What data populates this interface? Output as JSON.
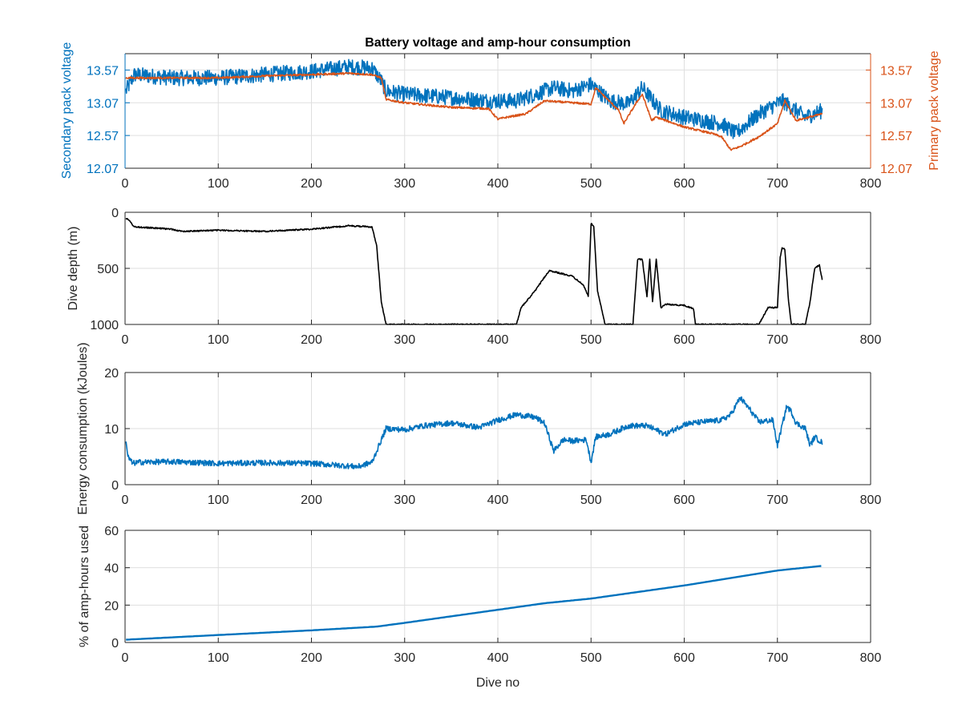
{
  "colors": {
    "blue": "#0072bd",
    "orange": "#d95319",
    "black": "#000000",
    "axis": "#262626",
    "grid": "#dfdfdf"
  },
  "chart_data": [
    {
      "type": "line",
      "title": "Battery voltage and amp-hour consumption",
      "xlabel": "",
      "ylabel": "Secondary pack voltage",
      "ylabel_right": "Primary pack voltage",
      "xlim": [
        0,
        800
      ],
      "ylim": [
        12.07,
        13.82
      ],
      "ylim_right": [
        12.07,
        13.82
      ],
      "xticks": [
        "0",
        "100",
        "200",
        "300",
        "400",
        "500",
        "600",
        "700",
        "800"
      ],
      "yticks": [
        "12.07",
        "12.57",
        "13.07",
        "13.57"
      ],
      "yticks_right": [
        "12.07",
        "12.57",
        "13.07",
        "13.57"
      ],
      "grid": true,
      "series": [
        {
          "axis": "left",
          "color": "#0072bd",
          "noise": 0.12,
          "x": [
            1,
            10,
            50,
            100,
            150,
            200,
            240,
            265,
            275,
            280,
            300,
            350,
            390,
            420,
            460,
            480,
            500,
            520,
            540,
            555,
            575,
            600,
            640,
            655,
            680,
            705,
            730,
            748
          ],
          "y": [
            13.25,
            13.5,
            13.45,
            13.45,
            13.5,
            13.55,
            13.62,
            13.6,
            13.4,
            13.25,
            13.2,
            13.15,
            13.1,
            13.1,
            13.3,
            13.25,
            13.35,
            13.1,
            13.05,
            13.3,
            12.95,
            12.85,
            12.75,
            12.6,
            12.9,
            13.1,
            12.85,
            12.95
          ]
        },
        {
          "axis": "right",
          "color": "#d95319",
          "noise": 0.015,
          "x": [
            1,
            10,
            50,
            100,
            150,
            200,
            240,
            265,
            275,
            280,
            300,
            350,
            390,
            400,
            410,
            430,
            450,
            500,
            505,
            530,
            535,
            550,
            555,
            565,
            570,
            600,
            630,
            640,
            650,
            660,
            680,
            700,
            708,
            720,
            748
          ],
          "y": [
            13.45,
            13.45,
            13.45,
            13.45,
            13.48,
            13.5,
            13.52,
            13.5,
            13.45,
            13.12,
            13.07,
            13.0,
            12.98,
            12.82,
            12.85,
            12.9,
            13.1,
            13.05,
            13.3,
            12.95,
            12.75,
            13.1,
            13.2,
            12.8,
            12.85,
            12.7,
            12.6,
            12.55,
            12.35,
            12.4,
            12.55,
            12.75,
            13.1,
            12.8,
            12.9
          ]
        }
      ]
    },
    {
      "type": "line",
      "title": "",
      "xlabel": "",
      "ylabel": "Dive depth (m)",
      "xlim": [
        0,
        800
      ],
      "ylim": [
        0,
        1000
      ],
      "y_reversed": true,
      "xticks": [
        "0",
        "100",
        "200",
        "300",
        "400",
        "500",
        "600",
        "700",
        "800"
      ],
      "yticks": [
        "0",
        "500",
        "1000"
      ],
      "grid": true,
      "series": [
        {
          "axis": "left",
          "color": "#000000",
          "noise": 6,
          "x": [
            1,
            5,
            10,
            50,
            60,
            100,
            150,
            200,
            240,
            265,
            270,
            275,
            280,
            300,
            350,
            400,
            420,
            425,
            440,
            455,
            480,
            492,
            497,
            500,
            503,
            507,
            515,
            520,
            545,
            550,
            555,
            560,
            563,
            566,
            570,
            575,
            580,
            600,
            610,
            612,
            660,
            680,
            690,
            700,
            703,
            705,
            708,
            712,
            715,
            730,
            735,
            740,
            745,
            748
          ],
          "y": [
            50,
            80,
            130,
            150,
            170,
            160,
            170,
            150,
            120,
            130,
            300,
            800,
            1000,
            1000,
            1000,
            1000,
            1000,
            850,
            700,
            520,
            570,
            650,
            750,
            100,
            130,
            700,
            1000,
            1000,
            1000,
            420,
            420,
            750,
            420,
            800,
            420,
            850,
            820,
            830,
            860,
            1000,
            1000,
            1000,
            850,
            850,
            400,
            320,
            330,
            800,
            1000,
            1000,
            800,
            500,
            470,
            600
          ]
        }
      ]
    },
    {
      "type": "line",
      "title": "",
      "xlabel": "",
      "ylabel": "Energy consumption (kJoules)",
      "xlim": [
        0,
        800
      ],
      "ylim": [
        0,
        20
      ],
      "xticks": [
        "0",
        "100",
        "200",
        "300",
        "400",
        "500",
        "600",
        "700",
        "800"
      ],
      "yticks": [
        "0",
        "10",
        "20"
      ],
      "grid": true,
      "series": [
        {
          "axis": "left",
          "color": "#0072bd",
          "noise": 0.5,
          "x": [
            1,
            3,
            8,
            15,
            50,
            100,
            150,
            200,
            250,
            265,
            270,
            280,
            300,
            320,
            350,
            380,
            400,
            420,
            440,
            450,
            460,
            470,
            480,
            495,
            500,
            505,
            520,
            540,
            560,
            580,
            600,
            620,
            640,
            650,
            660,
            670,
            680,
            695,
            700,
            710,
            715,
            720,
            730,
            735,
            740,
            748
          ],
          "y": [
            8,
            5,
            3.8,
            4,
            4.1,
            3.8,
            3.9,
            3.8,
            3.2,
            4,
            6,
            10,
            9.8,
            10.5,
            11,
            10.2,
            11.5,
            12.5,
            12,
            11,
            6,
            8,
            7.8,
            8,
            4,
            8.5,
            9,
            10.5,
            10.5,
            9,
            10.8,
            11.2,
            11.5,
            12.5,
            15.5,
            13.5,
            11.2,
            11.5,
            7,
            14,
            13,
            11,
            10,
            7,
            8.5,
            7.5
          ]
        }
      ]
    },
    {
      "type": "line",
      "title": "",
      "xlabel": "Dive no",
      "ylabel": "% of amp-hours used",
      "xlim": [
        0,
        800
      ],
      "ylim": [
        0,
        60
      ],
      "xticks": [
        "0",
        "100",
        "200",
        "300",
        "400",
        "500",
        "600",
        "700",
        "800"
      ],
      "yticks": [
        "0",
        "20",
        "40",
        "60"
      ],
      "grid": true,
      "series": [
        {
          "axis": "left",
          "color": "#0072bd",
          "noise": 0,
          "x": [
            1,
            100,
            200,
            270,
            300,
            350,
            400,
            450,
            500,
            550,
            600,
            650,
            700,
            748
          ],
          "y": [
            1.5,
            4,
            6.5,
            8.5,
            10.5,
            14,
            17.5,
            21,
            23.5,
            27,
            30.5,
            34.5,
            38.5,
            41
          ]
        }
      ]
    }
  ]
}
